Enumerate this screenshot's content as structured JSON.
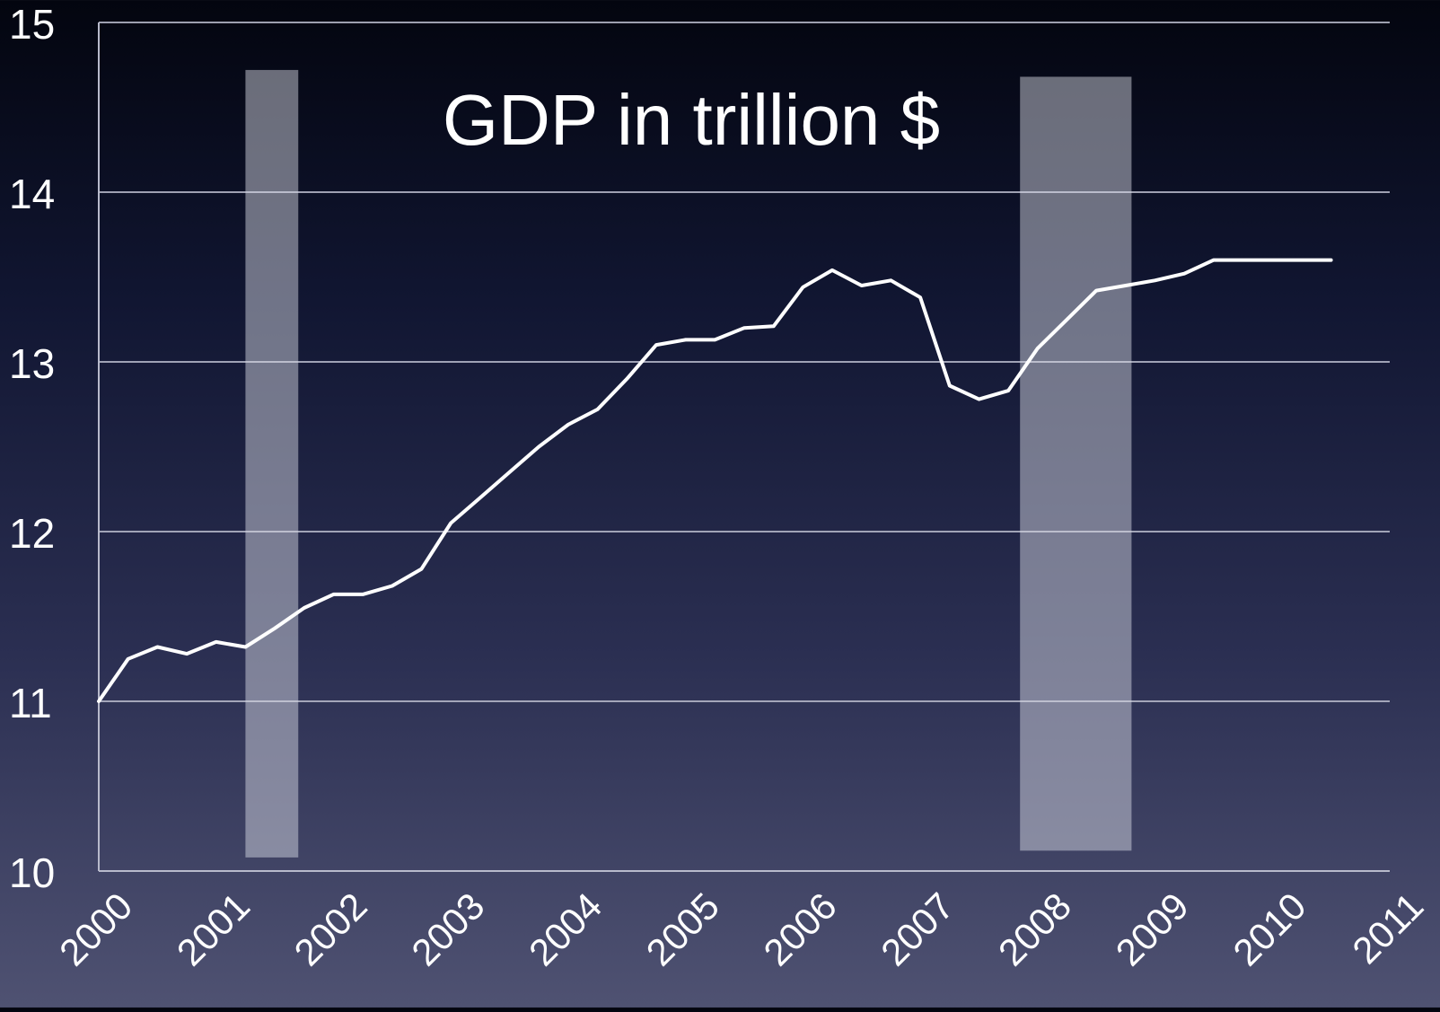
{
  "chart_data": {
    "type": "line",
    "title": "GDP in trillion $",
    "xlabel": "",
    "ylabel": "",
    "xlim": [
      2000,
      2011
    ],
    "ylim": [
      10,
      15
    ],
    "grid": true,
    "x_tick_labels": [
      "2000",
      "2001",
      "2002",
      "2003",
      "2004",
      "2005",
      "2006",
      "2007",
      "2008",
      "2009",
      "2010",
      "2011"
    ],
    "y_tick_labels": [
      "10",
      "11",
      "12",
      "13",
      "14",
      "15"
    ],
    "recession_shading": [
      {
        "start": 2001.25,
        "end": 2001.7
      },
      {
        "start": 2007.85,
        "end": 2008.8
      }
    ],
    "series": [
      {
        "x": [
          2000.0,
          2000.25,
          2000.5,
          2000.75,
          2001.0,
          2001.25,
          2001.5,
          2001.75,
          2002.0,
          2002.25,
          2002.5,
          2002.75,
          2003.0,
          2003.25,
          2003.5,
          2003.75,
          2004.0,
          2004.25,
          2004.5,
          2004.75,
          2005.0,
          2005.25,
          2005.5,
          2005.75,
          2006.0,
          2006.25,
          2006.5,
          2006.75,
          2007.0,
          2007.25,
          2007.5,
          2007.75,
          2008.0,
          2008.25,
          2008.5,
          2008.75,
          2009.0,
          2009.25,
          2009.5,
          2009.75,
          2010.0,
          2010.25,
          2010.5
        ],
        "values": [
          11.0,
          11.25,
          11.32,
          11.28,
          11.35,
          11.32,
          11.43,
          11.55,
          11.63,
          11.63,
          11.68,
          11.78,
          12.05,
          12.2,
          12.35,
          12.5,
          12.63,
          12.72,
          12.9,
          13.1,
          13.13,
          13.13,
          13.2,
          13.21,
          13.44,
          13.54,
          13.45,
          13.48,
          13.38,
          12.86,
          12.78,
          12.83,
          13.08,
          13.25,
          13.42,
          13.45,
          13.48,
          13.52,
          13.6,
          13.6,
          13.6,
          13.6,
          13.6
        ]
      }
    ]
  }
}
